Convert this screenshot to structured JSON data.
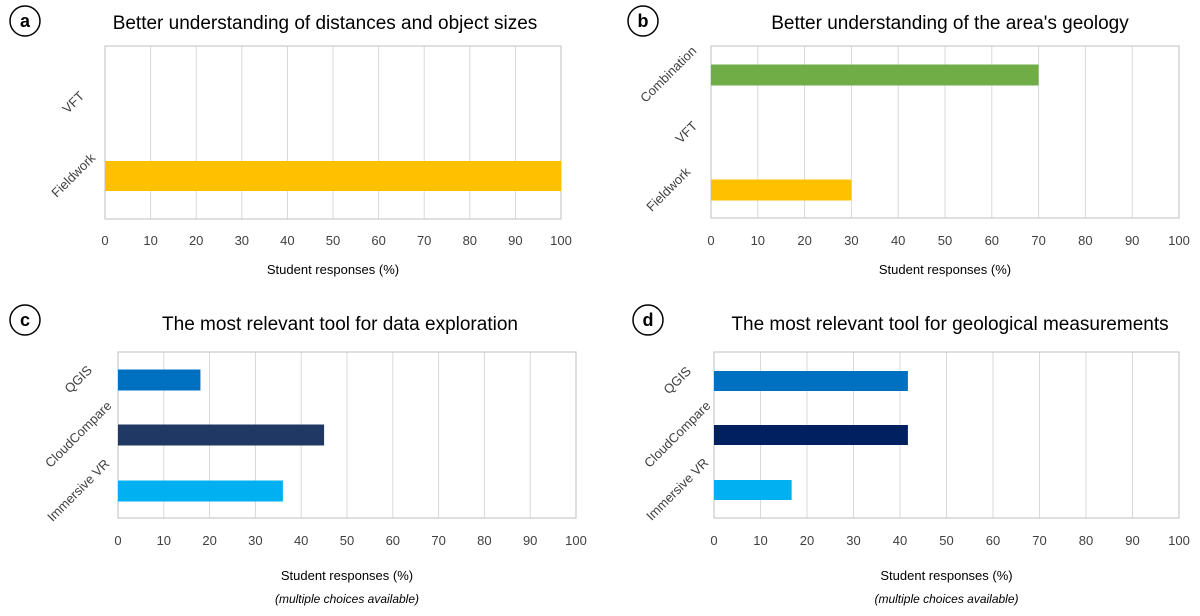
{
  "chart_data": [
    {
      "type": "bar",
      "panel": "a",
      "title": "Better understanding of distances and object sizes",
      "categories": [
        "VFT",
        "Fieldwork"
      ],
      "values": [
        0,
        100
      ],
      "colors": [
        "#ffc000",
        "#ffc000"
      ],
      "xlabel": "Student responses (%)",
      "note": "",
      "xlim": [
        0,
        100
      ],
      "xticks": [
        "0",
        "10",
        "20",
        "30",
        "40",
        "50",
        "60",
        "70",
        "80",
        "90",
        "100"
      ],
      "grid": true,
      "orientation": "horizontal"
    },
    {
      "type": "bar",
      "panel": "b",
      "title": "Better understanding of the area's geology",
      "categories": [
        "Combination",
        "VFT",
        "Fieldwork"
      ],
      "values": [
        70,
        0,
        30
      ],
      "colors": [
        "#70ad47",
        "#70ad47",
        "#ffc000"
      ],
      "xlabel": "Student responses (%)",
      "note": "",
      "xlim": [
        0,
        100
      ],
      "xticks": [
        "0",
        "10",
        "20",
        "30",
        "40",
        "50",
        "60",
        "70",
        "80",
        "90",
        "100"
      ],
      "grid": true,
      "orientation": "horizontal"
    },
    {
      "type": "bar",
      "panel": "c",
      "title": "The most relevant tool for data exploration",
      "categories": [
        "QGIS",
        "CloudCompare",
        "Immersive VR"
      ],
      "values": [
        18,
        45,
        36
      ],
      "colors": [
        "#0070c0",
        "#203864",
        "#00b0f0"
      ],
      "xlabel": "Student responses (%)",
      "note": "(multiple choices available)",
      "xlim": [
        0,
        100
      ],
      "xticks": [
        "0",
        "10",
        "20",
        "30",
        "40",
        "50",
        "60",
        "70",
        "80",
        "90",
        "100"
      ],
      "grid": true,
      "orientation": "horizontal"
    },
    {
      "type": "bar",
      "panel": "d",
      "title": "The most relevant tool for geological measurements",
      "categories": [
        "QGIS",
        "CloudCompare",
        "Immersive VR"
      ],
      "values": [
        41.7,
        41.7,
        16.7
      ],
      "colors": [
        "#0070c0",
        "#002060",
        "#00b0f0"
      ],
      "xlabel": "Student responses (%)",
      "note": "(multiple choices available)",
      "xlim": [
        0,
        100
      ],
      "xticks": [
        "0",
        "10",
        "20",
        "30",
        "40",
        "50",
        "60",
        "70",
        "80",
        "90",
        "100"
      ],
      "grid": true,
      "orientation": "horizontal"
    }
  ]
}
